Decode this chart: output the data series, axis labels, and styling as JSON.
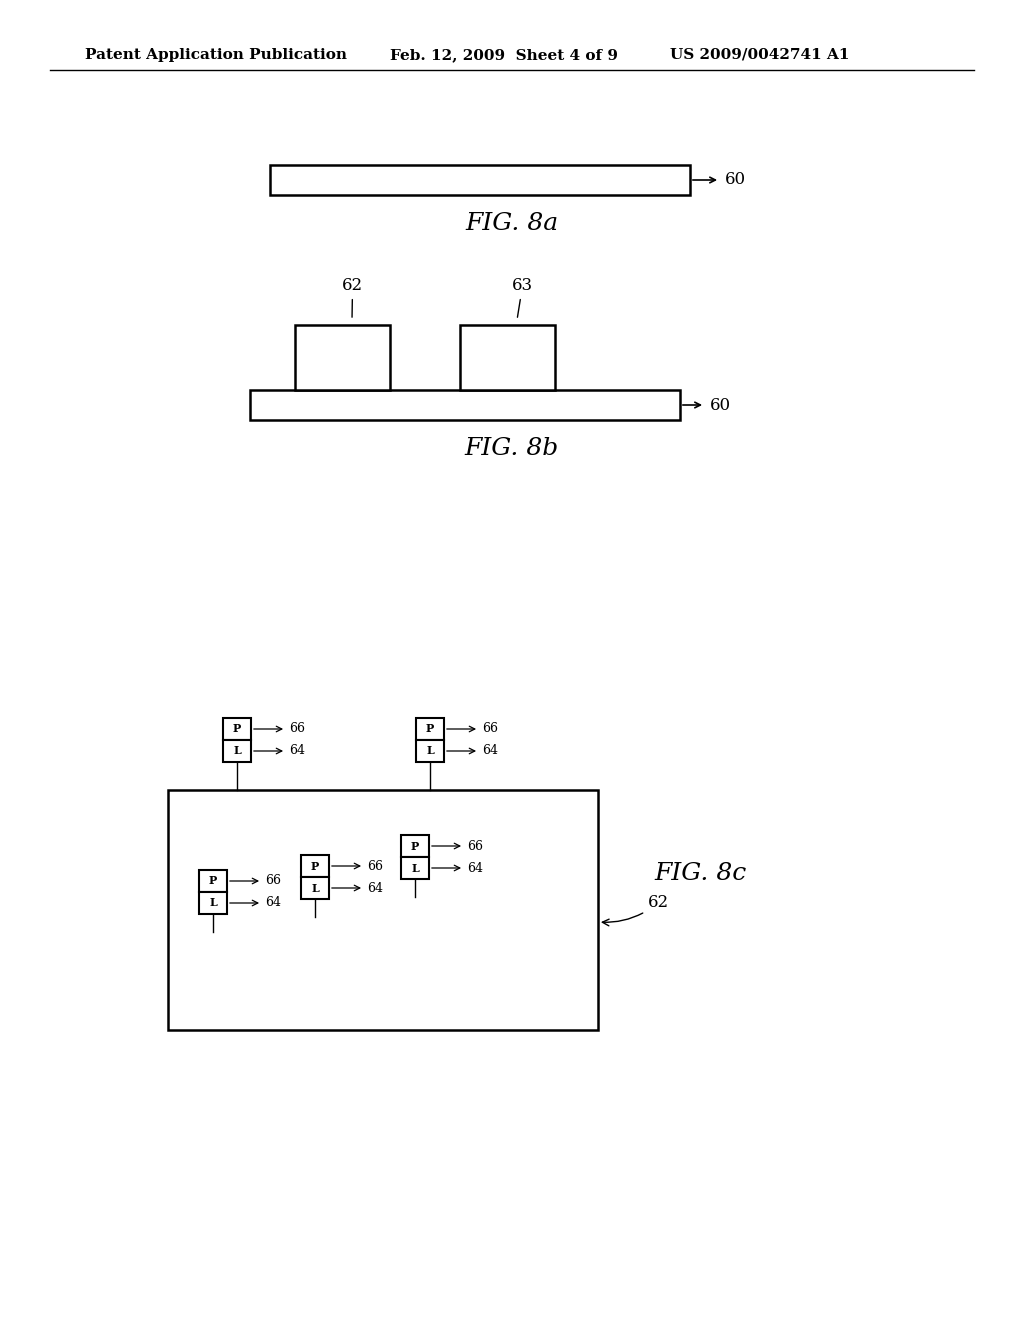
{
  "bg_color": "#ffffff",
  "header_left": "Patent Application Publication",
  "header_mid": "Feb. 12, 2009  Sheet 4 of 9",
  "header_right": "US 2009/0042741 A1",
  "fig8a_label": "FIG. 8a",
  "fig8b_label": "FIG. 8b",
  "fig8c_label": "FIG. 8c",
  "label_60": "60",
  "label_62": "62",
  "label_63": "63",
  "label_64": "64",
  "label_66": "66",
  "label_P": "P",
  "label_L": "L"
}
